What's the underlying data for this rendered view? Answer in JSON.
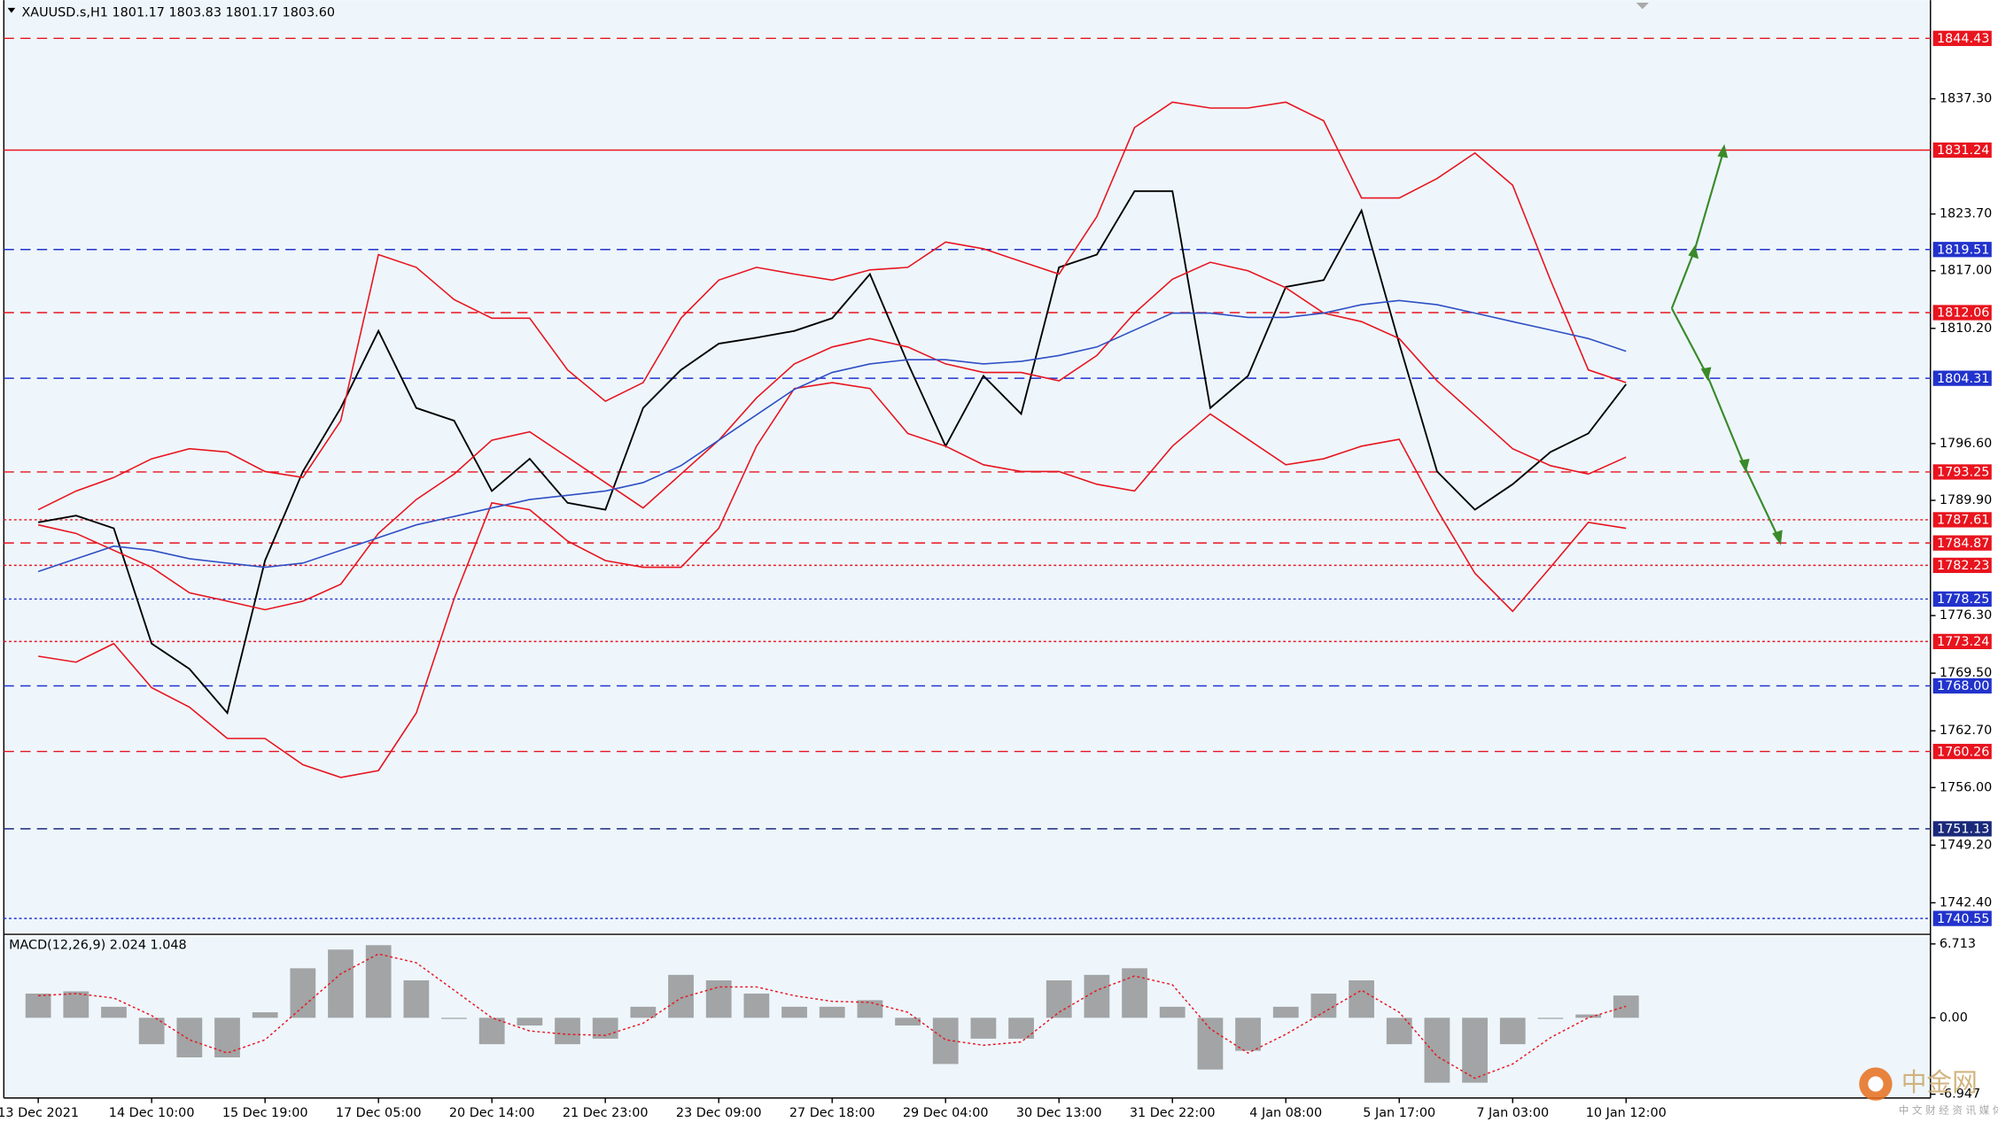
{
  "chart_data": [
    {
      "type": "line",
      "title": "XAUUSD.s,H1  1801.17 1803.83 1801.17 1803.60",
      "categories": [
        "13 Dec 2021",
        null,
        null,
        "14 Dec 10:00",
        null,
        null,
        "15 Dec 19:00",
        null,
        null,
        "17 Dec 05:00",
        null,
        null,
        "20 Dec 14:00",
        null,
        null,
        "21 Dec 23:00",
        null,
        null,
        "23 Dec 09:00",
        null,
        null,
        "27 Dec 18:00",
        null,
        null,
        "29 Dec 04:00",
        null,
        null,
        "30 Dec 13:00",
        null,
        null,
        "31 Dec 22:00",
        null,
        null,
        "4 Jan 08:00",
        null,
        null,
        "5 Jan 17:00",
        null,
        null,
        "7 Jan 03:00",
        null,
        null,
        "10 Jan 12:00"
      ],
      "series": [
        {
          "color": "#000000",
          "values": [
            1787.3,
            1788.1,
            1786.6,
            1773.0,
            1770.0,
            1764.8,
            1782.8,
            1793.3,
            1800.8,
            1809.9,
            1800.8,
            1799.3,
            1791.0,
            1794.8,
            1789.6,
            1788.8,
            1800.8,
            1805.3,
            1808.4,
            1809.1,
            1809.9,
            1811.4,
            1816.6,
            1806.1,
            1796.3,
            1804.6,
            1800.1,
            1817.4,
            1818.9,
            1826.4,
            1826.4,
            1800.8,
            1804.6,
            1815.1,
            1815.9,
            1824.1,
            1808.4,
            1793.3,
            1788.8,
            1791.8,
            1795.6,
            1797.8,
            1803.6
          ]
        },
        {
          "color": "#e8141e",
          "values": [
            1788.8,
            1791.0,
            1792.6,
            1794.8,
            1796.0,
            1795.6,
            1793.3,
            1792.6,
            1799.3,
            1818.9,
            1817.4,
            1813.6,
            1811.4,
            1811.4,
            1805.3,
            1801.6,
            1803.8,
            1811.4,
            1815.9,
            1817.4,
            1816.6,
            1815.9,
            1817.1,
            1817.4,
            1820.4,
            1819.6,
            1818.1,
            1816.6,
            1823.4,
            1833.9,
            1836.9,
            1836.2,
            1836.2,
            1836.9,
            1834.7,
            1825.6,
            1825.6,
            1827.9,
            1830.9,
            1827.1,
            1815.9,
            1805.3,
            1803.8
          ]
        },
        {
          "color": "#e8141e",
          "values": [
            1787,
            1786,
            1784,
            1782,
            1779,
            1778,
            1777,
            1778,
            1780,
            1786,
            1790,
            1793,
            1797,
            1798,
            1795,
            1792,
            1789,
            1793,
            1797,
            1802,
            1806,
            1808,
            1809,
            1808,
            1806,
            1805,
            1805,
            1804,
            1807,
            1812,
            1816,
            1818,
            1817,
            1815,
            1812,
            1811,
            1809,
            1804,
            1800,
            1796,
            1794,
            1793,
            1795
          ]
        },
        {
          "color": "#e8141e",
          "values": [
            1771.5,
            1770.8,
            1773.0,
            1767.8,
            1765.5,
            1761.8,
            1761.8,
            1758.7,
            1757.2,
            1758.0,
            1764.8,
            1778.3,
            1789.6,
            1788.8,
            1785.1,
            1782.8,
            1782.0,
            1782.0,
            1786.6,
            1796.3,
            1803.1,
            1803.8,
            1803.1,
            1797.8,
            1796.3,
            1794.1,
            1793.3,
            1793.3,
            1791.8,
            1791.0,
            1796.3,
            1800.1,
            1797.1,
            1794.1,
            1794.8,
            1796.3,
            1797.1,
            1788.8,
            1781.3,
            1776.8,
            1782.0,
            1787.3,
            1786.6
          ]
        },
        {
          "color": "#2f4fc4",
          "values": [
            1781.5,
            1783,
            1784.5,
            1784,
            1783,
            1782.5,
            1782,
            1782.5,
            1784,
            1785.5,
            1787,
            1788,
            1789,
            1790,
            1790.5,
            1791,
            1792,
            1794,
            1797,
            1800,
            1803,
            1805,
            1806,
            1806.5,
            1806.5,
            1806,
            1806.3,
            1807,
            1808,
            1810,
            1812,
            1812,
            1811.5,
            1811.5,
            1812,
            1813,
            1813.5,
            1813,
            1812,
            1811,
            1810,
            1809,
            1807.5
          ]
        }
      ],
      "ylim": [
        1738.75,
        1848.94
      ],
      "yticks": [
        {
          "value": 1837.3,
          "label": "1837.30"
        },
        {
          "value": 1823.7,
          "label": "1823.70"
        },
        {
          "value": 1817.0,
          "label": "1817.00"
        },
        {
          "value": 1810.2,
          "label": "1810.20"
        },
        {
          "value": 1796.6,
          "label": "1796.60"
        },
        {
          "value": 1789.9,
          "label": "1789.90"
        },
        {
          "value": 1776.3,
          "label": "1776.30"
        },
        {
          "value": 1769.5,
          "label": "1769.50"
        },
        {
          "value": 1762.7,
          "label": "1762.70"
        },
        {
          "value": 1756.0,
          "label": "1756.00"
        },
        {
          "value": 1749.2,
          "label": "1749.20"
        },
        {
          "value": 1742.4,
          "label": "1742.40"
        }
      ],
      "levels": [
        {
          "value": 1844.43,
          "label": "1844.43",
          "color": "#e8141e",
          "style": "dashed"
        },
        {
          "value": 1831.24,
          "label": "1831.24",
          "color": "#e8141e",
          "style": "solid"
        },
        {
          "value": 1819.51,
          "label": "1819.51",
          "color": "#2233cc",
          "style": "dashed"
        },
        {
          "value": 1812.06,
          "label": "1812.06",
          "color": "#e8141e",
          "style": "dashed"
        },
        {
          "value": 1804.31,
          "label": "1804.31",
          "color": "#2233cc",
          "style": "dashed"
        },
        {
          "value": 1793.25,
          "label": "1793.25",
          "color": "#e8141e",
          "style": "dashed"
        },
        {
          "value": 1787.61,
          "label": "1787.61",
          "color": "#e8141e",
          "style": "dotted"
        },
        {
          "value": 1784.87,
          "label": "1784.87",
          "color": "#e8141e",
          "style": "dashed"
        },
        {
          "value": 1782.23,
          "label": "1782.23",
          "color": "#e8141e",
          "style": "dotted"
        },
        {
          "value": 1778.25,
          "label": "1778.25",
          "color": "#2233cc",
          "style": "dotted"
        },
        {
          "value": 1773.24,
          "label": "1773.24",
          "color": "#e8141e",
          "style": "dotted"
        },
        {
          "value": 1768.0,
          "label": "1768.00",
          "color": "#2233cc",
          "style": "dashed"
        },
        {
          "value": 1760.26,
          "label": "1760.26",
          "color": "#e8141e",
          "style": "dashed"
        },
        {
          "value": 1751.13,
          "label": "1751.13",
          "color": "#1a2a7a",
          "style": "dashed"
        },
        {
          "value": 1740.55,
          "label": "1740.55",
          "color": "#2233cc",
          "style": "dotted"
        }
      ]
    },
    {
      "type": "macd",
      "title": "MACD(12,26,9) 2.024 1.048",
      "series": [
        {
          "color": "#888888",
          "values": [
            2.2,
            2.4,
            1.0,
            -2.4,
            -3.6,
            -3.6,
            0.5,
            4.5,
            6.2,
            6.6,
            3.4,
            -0.1,
            -2.4,
            -0.7,
            -2.4,
            -1.9,
            1.0,
            3.9,
            3.4,
            2.2,
            1.0,
            1.0,
            1.6,
            -0.7,
            -4.2,
            -1.9,
            -1.9,
            3.4,
            3.9,
            4.5,
            1.0,
            -4.7,
            -3.0,
            1.0,
            2.2,
            3.4,
            -2.4,
            -5.9,
            -5.9,
            -2.4,
            -0.1,
            0.3,
            2.024
          ]
        },
        {
          "color": "#e8141e",
          "values": [
            2.0,
            2.2,
            1.8,
            0.2,
            -2.0,
            -3.2,
            -2.0,
            1.0,
            4.0,
            5.8,
            5.0,
            2.5,
            0,
            -1.2,
            -1.5,
            -1.6,
            -0.5,
            1.8,
            2.8,
            2.8,
            2.0,
            1.5,
            1.4,
            0.5,
            -2.0,
            -2.5,
            -2.2,
            0.5,
            2.5,
            3.8,
            3.0,
            -1.0,
            -3.2,
            -1.5,
            0.5,
            2.5,
            0.5,
            -3.5,
            -5.5,
            -4.2,
            -1.8,
            0.0,
            1.048
          ]
        }
      ],
      "ylim": [
        -7.29,
        7.41
      ],
      "yticks": [
        6.713,
        {
          "value": 0,
          "label": "0.00"
        },
        -6.947
      ]
    }
  ],
  "watermark": {
    "title": "中金网",
    "subtitle": "中 文 财 经 资 讯 媒 体"
  }
}
